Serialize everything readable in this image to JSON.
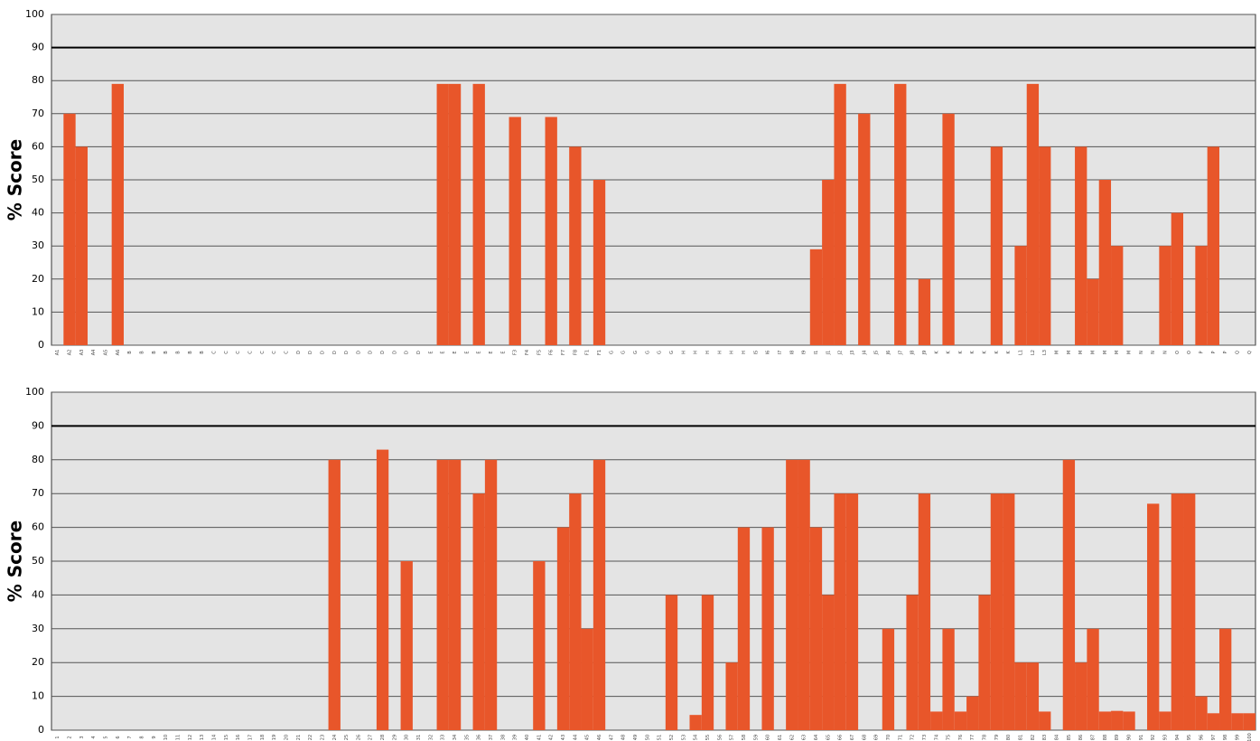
{
  "chart_data": [
    {
      "type": "bar",
      "ylabel": "% Score",
      "color": "#e8562a",
      "ylim": [
        0,
        100
      ],
      "yticks": [
        0,
        10,
        20,
        30,
        40,
        50,
        60,
        70,
        80,
        90,
        100
      ],
      "grid": true,
      "highlight_tick": 90,
      "categories": [
        "A1",
        "A2",
        "A3",
        "A4",
        "A5",
        "A6",
        "B",
        "B",
        "B",
        "B",
        "B",
        "B",
        "B",
        "C",
        "C",
        "C",
        "C",
        "C",
        "C",
        "C",
        "D",
        "D",
        "D",
        "D",
        "D",
        "D",
        "D",
        "D",
        "D",
        "D",
        "D",
        "E",
        "E",
        "E",
        "E",
        "E",
        "E",
        "E",
        "F3",
        "F4",
        "F5",
        "F6",
        "F7",
        "F8",
        "F1",
        "F1",
        "G",
        "G",
        "G",
        "G",
        "G",
        "G",
        "H",
        "H",
        "H",
        "H",
        "H",
        "H",
        "I5",
        "I6",
        "I7",
        "I8",
        "I9",
        "I1",
        "J1",
        "J2",
        "J3",
        "J4",
        "J5",
        "J6",
        "J7",
        "J8",
        "J9",
        "K",
        "K",
        "K",
        "K",
        "K",
        "K",
        "K",
        "L1",
        "L2",
        "L3",
        "M",
        "M",
        "M",
        "M",
        "M",
        "M",
        "M",
        "N",
        "N",
        "N",
        "O",
        "O",
        "P",
        "P",
        "P",
        "Q",
        "Q"
      ],
      "values": [
        0,
        70,
        60,
        0,
        0,
        79,
        0,
        0,
        0,
        0,
        0,
        0,
        0,
        0,
        0,
        0,
        0,
        0,
        0,
        0,
        0,
        0,
        0,
        0,
        0,
        0,
        0,
        0,
        0,
        0,
        0,
        0,
        79,
        79,
        0,
        79,
        0,
        0,
        69,
        0,
        0,
        69,
        0,
        60,
        0,
        50,
        0,
        0,
        0,
        0,
        0,
        0,
        0,
        0,
        0,
        0,
        0,
        0,
        0,
        0,
        0,
        0,
        0,
        29,
        50,
        79,
        0,
        70,
        0,
        0,
        79,
        0,
        20,
        0,
        70,
        0,
        0,
        0,
        60,
        0,
        30,
        79,
        60,
        0,
        0,
        60,
        20,
        50,
        30,
        0,
        0,
        0,
        30,
        40,
        0,
        30,
        60,
        0,
        0,
        0
      ]
    },
    {
      "type": "bar",
      "ylabel": "% Score",
      "color": "#e8562a",
      "ylim": [
        0,
        100
      ],
      "yticks": [
        0,
        10,
        20,
        30,
        40,
        50,
        60,
        70,
        80,
        90,
        100
      ],
      "grid": true,
      "highlight_tick": 90,
      "categories": [
        "1",
        "2",
        "3",
        "4",
        "5",
        "6",
        "7",
        "8",
        "9",
        "10",
        "11",
        "12",
        "13",
        "14",
        "15",
        "16",
        "17",
        "18",
        "19",
        "20",
        "21",
        "22",
        "23",
        "24",
        "25",
        "26",
        "27",
        "28",
        "29",
        "30",
        "31",
        "32",
        "33",
        "34",
        "35",
        "36",
        "37",
        "38",
        "39",
        "40",
        "41",
        "42",
        "43",
        "44",
        "45",
        "46",
        "47",
        "48",
        "49",
        "50",
        "51",
        "52",
        "53",
        "54",
        "55",
        "56",
        "57",
        "58",
        "59",
        "60",
        "61",
        "62",
        "63",
        "64",
        "65",
        "66",
        "67",
        "68",
        "69",
        "70",
        "71",
        "72",
        "73",
        "74",
        "75",
        "76",
        "77",
        "78",
        "79",
        "80",
        "81",
        "82",
        "83",
        "84",
        "85",
        "86",
        "87",
        "88",
        "89",
        "90",
        "91",
        "92",
        "93",
        "94",
        "95",
        "96",
        "97",
        "98",
        "99",
        "100"
      ],
      "values": [
        0,
        0,
        0,
        0,
        0,
        0,
        0,
        0,
        0,
        0,
        0,
        0,
        0,
        0,
        0,
        0,
        0,
        0,
        0,
        0,
        0,
        0,
        0,
        80,
        0,
        0,
        0,
        83,
        0,
        50,
        0,
        0,
        80,
        80,
        0,
        70,
        80,
        0,
        0,
        0,
        50,
        0,
        60,
        70,
        30,
        80,
        0,
        0,
        0,
        0,
        0,
        40,
        0,
        4.5,
        40,
        0,
        20,
        60,
        0,
        60,
        0,
        80,
        80,
        60,
        40,
        70,
        70,
        0,
        0,
        30,
        0,
        40,
        70,
        5.5,
        30,
        5.5,
        10,
        40,
        70,
        70,
        20,
        20,
        5.5,
        0,
        80,
        20,
        30,
        5.5,
        5.7,
        5.5,
        0,
        67,
        5.5,
        70,
        70,
        10,
        5,
        30,
        5,
        5
      ]
    }
  ]
}
